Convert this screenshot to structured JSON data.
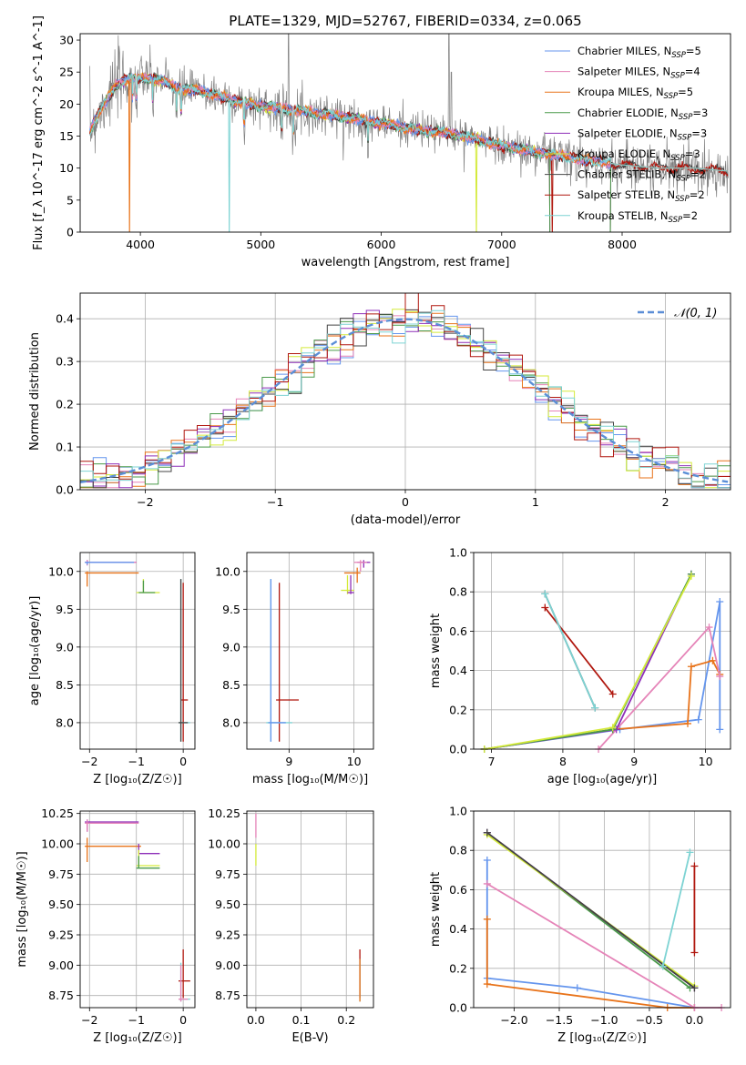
{
  "title": "PLATE=1329, MJD=52767, FIBERID=0334, z=0.065",
  "series_colors": {
    "chabrier_miles": "#6495ed",
    "salpeter_miles": "#e584b8",
    "kroupa_miles": "#e8731a",
    "chabrier_elodie": "#4a9a4a",
    "salpeter_elodie": "#8e2fb8",
    "kroupa_elodie": "#d4ea3a",
    "chabrier_stelib": "#444444",
    "salpeter_stelib": "#b0170e",
    "kroupa_stelib": "#7dd3d3",
    "data": "#808080",
    "normal": "#5b8ed6"
  },
  "chart_data": [
    {
      "id": "spectrum",
      "type": "line",
      "xlabel": "wavelength [Angstrom, rest frame]",
      "ylabel": "Flux [f_λ 10^-17 erg cm^-2 s^-1 A^-1]",
      "xlim": [
        3500,
        8900
      ],
      "ylim": [
        0,
        31
      ],
      "xticks": [
        4000,
        5000,
        6000,
        7000,
        8000
      ],
      "yticks": [
        0,
        5,
        10,
        15,
        20,
        25,
        30
      ],
      "legend": {
        "placement": "upper right",
        "entries": [
          {
            "label": "Chabrier MILES, N",
            "sub": "SSP",
            "suffix": "=5",
            "color_key": "chabrier_miles"
          },
          {
            "label": "Salpeter MILES, N",
            "sub": "SSP",
            "suffix": "=4",
            "color_key": "salpeter_miles"
          },
          {
            "label": "Kroupa MILES, N",
            "sub": "SSP",
            "suffix": "=5",
            "color_key": "kroupa_miles"
          },
          {
            "label": "Chabrier ELODIE, N",
            "sub": "SSP",
            "suffix": "=3",
            "color_key": "chabrier_elodie"
          },
          {
            "label": "Salpeter ELODIE, N",
            "sub": "SSP",
            "suffix": "=3",
            "color_key": "salpeter_elodie"
          },
          {
            "label": "Kroupa ELODIE, N",
            "sub": "SSP",
            "suffix": "=3",
            "color_key": "kroupa_elodie"
          },
          {
            "label": "Chabrier STELIB, N",
            "sub": "SSP",
            "suffix": "=2",
            "color_key": "chabrier_stelib"
          },
          {
            "label": "Salpeter STELIB, N",
            "sub": "SSP",
            "suffix": "=2",
            "color_key": "salpeter_stelib"
          },
          {
            "label": "Kroupa STELIB, N",
            "sub": "SSP",
            "suffix": "=2",
            "color_key": "kroupa_stelib"
          }
        ]
      },
      "continuum": [
        [
          3560,
          15
        ],
        [
          3620,
          17.5
        ],
        [
          3700,
          20
        ],
        [
          3800,
          23
        ],
        [
          3900,
          24
        ],
        [
          4000,
          24
        ],
        [
          4100,
          24
        ],
        [
          4200,
          23.5
        ],
        [
          4300,
          22.5
        ],
        [
          4500,
          22
        ],
        [
          4700,
          21
        ],
        [
          4900,
          20
        ],
        [
          5100,
          19.5
        ],
        [
          5300,
          19
        ],
        [
          5500,
          18.5
        ],
        [
          5700,
          18
        ],
        [
          6000,
          17
        ],
        [
          6300,
          16
        ],
        [
          6500,
          15.5
        ],
        [
          6700,
          15
        ],
        [
          7000,
          13.5
        ],
        [
          7300,
          12.5
        ],
        [
          7600,
          11.5
        ],
        [
          7800,
          11
        ],
        [
          8000,
          10.5
        ],
        [
          8300,
          10
        ],
        [
          8600,
          10
        ],
        [
          8900,
          9.5
        ]
      ],
      "emission": [
        [
          6563,
          31
        ],
        [
          6583,
          25
        ],
        [
          5007,
          21
        ]
      ],
      "model_dropouts": [
        [
          3910,
          "kroupa_miles"
        ],
        [
          4740,
          "kroupa_stelib"
        ],
        [
          6790,
          "kroupa_elodie"
        ],
        [
          7420,
          "salpeter_stelib"
        ]
      ],
      "model_end": 7400
    },
    {
      "id": "residuals",
      "type": "line",
      "xlabel": "(data-model)/error",
      "ylabel": "Normed distribution",
      "xlim": [
        -2.5,
        2.5
      ],
      "ylim": [
        0,
        0.46
      ],
      "xticks": [
        -2,
        -1,
        0,
        1,
        2
      ],
      "yticks": [
        0.0,
        0.1,
        0.2,
        0.3,
        0.4
      ],
      "grid": true,
      "legend": {
        "placement": "upper right",
        "entries": [
          {
            "label": "𝒩(0, 1)",
            "color_key": "normal",
            "style": "dashed"
          }
        ]
      },
      "bin_width": 0.1
    },
    {
      "id": "age_z",
      "type": "scatter",
      "xlabel": "Z [log₁₀(Z/Z☉)]",
      "ylabel": "age  [log₁₀(age/yr)]",
      "xlim": [
        -2.2,
        0.25
      ],
      "ylim": [
        7.65,
        10.25
      ],
      "xticks": [
        -2,
        -1,
        0
      ],
      "yticks": [
        8.0,
        8.5,
        9.0,
        9.5,
        10.0
      ],
      "grid": true
    },
    {
      "id": "age_mass",
      "type": "scatter",
      "xlabel": "mass [log₁₀(M/M☉)]",
      "ylabel": "",
      "xlim": [
        8.35,
        10.3
      ],
      "ylim": [
        7.65,
        10.25
      ],
      "xticks": [
        9,
        10
      ],
      "yticks": [
        8.0,
        8.5,
        9.0,
        9.5,
        10.0
      ],
      "grid": true
    },
    {
      "id": "weight_age",
      "type": "line",
      "xlabel": "age  [log₁₀(age/yr)]",
      "ylabel": "mass weight",
      "xlim": [
        6.75,
        10.35
      ],
      "ylim": [
        0,
        1.0
      ],
      "xticks": [
        7,
        8,
        9,
        10
      ],
      "yticks": [
        0.0,
        0.2,
        0.4,
        0.6,
        0.8,
        1.0
      ],
      "grid": true,
      "series": [
        {
          "color_key": "chabrier_miles",
          "points": [
            [
              6.9,
              0.0
            ],
            [
              8.8,
              0.1
            ],
            [
              9.9,
              0.15
            ],
            [
              10.2,
              0.75
            ],
            [
              10.2,
              0.1
            ]
          ]
        },
        {
          "color_key": "kroupa_miles",
          "points": [
            [
              6.9,
              0.0
            ],
            [
              8.7,
              0.1
            ],
            [
              9.75,
              0.13
            ],
            [
              9.8,
              0.42
            ],
            [
              10.1,
              0.45
            ],
            [
              10.2,
              0.38
            ]
          ]
        },
        {
          "color_key": "salpeter_miles",
          "points": [
            [
              8.5,
              0.0
            ],
            [
              10.05,
              0.62
            ],
            [
              10.2,
              0.37
            ]
          ]
        },
        {
          "color_key": "salpeter_elodie",
          "points": [
            [
              6.9,
              0.0
            ],
            [
              8.75,
              0.1
            ],
            [
              9.8,
              0.89
            ]
          ]
        },
        {
          "color_key": "chabrier_elodie",
          "points": [
            [
              6.9,
              0.0
            ],
            [
              8.7,
              0.1
            ],
            [
              9.8,
              0.89
            ]
          ]
        },
        {
          "color_key": "kroupa_elodie",
          "points": [
            [
              6.9,
              0.0
            ],
            [
              8.7,
              0.11
            ],
            [
              9.8,
              0.88
            ]
          ]
        },
        {
          "color_key": "salpeter_stelib",
          "points": [
            [
              7.75,
              0.72
            ],
            [
              8.7,
              0.28
            ]
          ]
        },
        {
          "color_key": "chabrier_stelib",
          "points": [
            [
              7.75,
              0.79
            ],
            [
              8.45,
              0.21
            ]
          ]
        },
        {
          "color_key": "kroupa_stelib",
          "points": [
            [
              7.75,
              0.79
            ],
            [
              8.45,
              0.21
            ]
          ]
        }
      ]
    },
    {
      "id": "mass_z",
      "type": "scatter",
      "xlabel": "Z [log₁₀(Z/Z☉)]",
      "ylabel": "mass [log₁₀(M/M☉)]",
      "xlim": [
        -2.2,
        0.25
      ],
      "ylim": [
        8.65,
        10.27
      ],
      "xticks": [
        -2,
        -1,
        0
      ],
      "yticks": [
        8.75,
        9.0,
        9.25,
        9.5,
        9.75,
        10.0,
        10.25
      ],
      "grid": true
    },
    {
      "id": "mass_ebv",
      "type": "scatter",
      "xlabel": "E(B-V)",
      "ylabel": "",
      "xlim": [
        -0.02,
        0.26
      ],
      "ylim": [
        8.65,
        10.27
      ],
      "xticks": [
        0.0,
        0.1,
        0.2
      ],
      "yticks": [
        8.75,
        9.0,
        9.25,
        9.5,
        9.75,
        10.0,
        10.25
      ],
      "grid": true
    },
    {
      "id": "weight_z",
      "type": "line",
      "xlabel": "Z [log₁₀(Z/Z☉)]",
      "ylabel": "mass weight",
      "xlim": [
        -2.45,
        0.4
      ],
      "ylim": [
        0,
        1.0
      ],
      "xticks": [
        -2.0,
        -1.5,
        -1.0,
        -0.5,
        0.0
      ],
      "yticks": [
        0.0,
        0.2,
        0.4,
        0.6,
        0.8,
        1.0
      ],
      "grid": true,
      "series": [
        {
          "color_key": "chabrier_miles",
          "points": [
            [
              -2.3,
              0.75
            ],
            [
              -2.3,
              0.15
            ],
            [
              -1.3,
              0.1
            ],
            [
              0.0,
              0.0
            ]
          ]
        },
        {
          "color_key": "kroupa_miles",
          "points": [
            [
              -2.3,
              0.45
            ],
            [
              -2.3,
              0.12
            ],
            [
              -0.3,
              0.0
            ],
            [
              0.0,
              0.0
            ]
          ]
        },
        {
          "color_key": "salpeter_miles",
          "points": [
            [
              -2.3,
              0.63
            ],
            [
              0.0,
              0.0
            ],
            [
              0.3,
              0.0
            ]
          ]
        },
        {
          "color_key": "chabrier_elodie",
          "points": [
            [
              -2.3,
              0.89
            ],
            [
              -0.05,
              0.1
            ]
          ]
        },
        {
          "color_key": "salpeter_elodie",
          "points": [
            [
              -2.3,
              0.89
            ],
            [
              0.0,
              0.1
            ]
          ]
        },
        {
          "color_key": "kroupa_elodie",
          "points": [
            [
              -2.3,
              0.88
            ],
            [
              0.0,
              0.11
            ]
          ]
        },
        {
          "color_key": "chabrier_stelib",
          "points": [
            [
              -2.3,
              0.89
            ],
            [
              0.0,
              0.1
            ]
          ]
        },
        {
          "color_key": "salpeter_stelib",
          "points": [
            [
              0.0,
              0.72
            ],
            [
              0.0,
              0.28
            ]
          ]
        },
        {
          "color_key": "kroupa_stelib",
          "points": [
            [
              -0.05,
              0.79
            ],
            [
              -0.35,
              0.21
            ]
          ]
        }
      ]
    }
  ]
}
